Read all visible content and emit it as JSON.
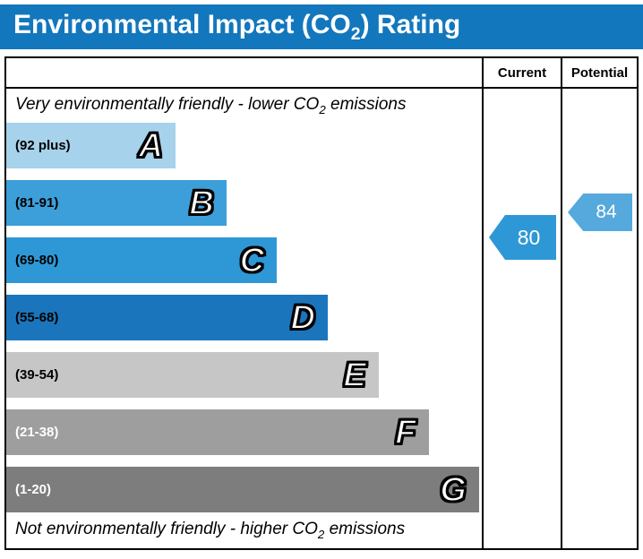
{
  "title": {
    "pre": "Environmental Impact (CO",
    "sub": "2",
    "post": ") Rating"
  },
  "header": {
    "current": "Current",
    "potential": "Potential"
  },
  "top_note": {
    "pre": "Very environmentally friendly - lower CO",
    "sub": "2",
    "post": " emissions"
  },
  "bottom_note": {
    "pre": "Not environmentally friendly - higher CO",
    "sub": "2",
    "post": " emissions"
  },
  "colors": {
    "title_bar": "#1277bd",
    "border": "#000000"
  },
  "chart_data": {
    "type": "bar",
    "title": "Environmental Impact (CO2) Rating",
    "bands": [
      {
        "letter": "A",
        "range_label": "(92 plus)",
        "lower": 92,
        "upper": 100,
        "color": "#a6d2eb",
        "label_color": "#000000",
        "width_pct": 35.6
      },
      {
        "letter": "B",
        "range_label": "(81-91)",
        "lower": 81,
        "upper": 91,
        "color": "#3c9fd9",
        "label_color": "#000000",
        "width_pct": 46.3
      },
      {
        "letter": "C",
        "range_label": "(69-80)",
        "lower": 69,
        "upper": 80,
        "color": "#2e98d6",
        "label_color": "#000000",
        "width_pct": 56.9
      },
      {
        "letter": "D",
        "range_label": "(55-68)",
        "lower": 55,
        "upper": 68,
        "color": "#1b75bc",
        "label_color": "#000000",
        "width_pct": 67.6
      },
      {
        "letter": "E",
        "range_label": "(39-54)",
        "lower": 39,
        "upper": 54,
        "color": "#c6c6c6",
        "label_color": "#000000",
        "width_pct": 78.3
      },
      {
        "letter": "F",
        "range_label": "(21-38)",
        "lower": 21,
        "upper": 38,
        "color": "#9e9e9e",
        "label_color": "#ffffff",
        "width_pct": 88.8
      },
      {
        "letter": "G",
        "range_label": "(1-20)",
        "lower": 1,
        "upper": 20,
        "color": "#7d7d7d",
        "label_color": "#ffffff",
        "width_pct": 99.4
      }
    ],
    "current": {
      "value": 80,
      "band": "C",
      "color": "#2e98d6"
    },
    "potential": {
      "value": 84,
      "band": "B",
      "color": "#55a9dc"
    }
  }
}
